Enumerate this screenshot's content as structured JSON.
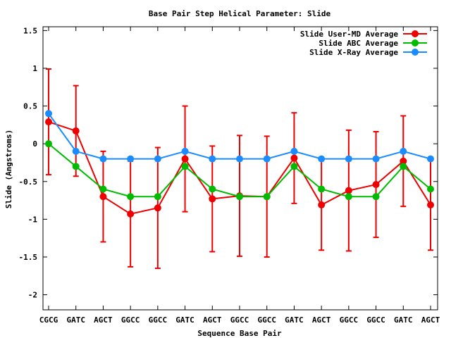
{
  "chart_data": {
    "type": "line",
    "title": "Base Pair Step Helical Parameter: Slide",
    "xlabel": "Sequence Base Pair",
    "ylabel": "Slide (Angstroms)",
    "ylim": [
      -2.2,
      1.55
    ],
    "yticks": [
      1.5,
      1,
      0.5,
      0,
      -0.5,
      -1,
      -1.5,
      -2
    ],
    "ytick_labels": [
      "1.5",
      "1",
      "0.5",
      "0",
      "-0.5",
      "-1",
      "-1.5",
      "-2"
    ],
    "categories": [
      "CGCG",
      "GATC",
      "AGCT",
      "GGCC",
      "GGCC",
      "GATC",
      "AGCT",
      "GGCC",
      "GGCC",
      "GATC",
      "AGCT",
      "GGCC",
      "GGCC",
      "GATC",
      "AGCT"
    ],
    "legend_position": "top-right",
    "series": [
      {
        "name": "Slide User-MD Average",
        "color": "#ee0000",
        "values": [
          0.29,
          0.17,
          -0.7,
          -0.93,
          -0.85,
          -0.2,
          -0.73,
          -0.69,
          -0.7,
          -0.19,
          -0.81,
          -0.62,
          -0.54,
          -0.23,
          -0.81
        ],
        "errors": [
          0.7,
          0.6,
          0.6,
          0.7,
          0.8,
          0.7,
          0.7,
          0.8,
          0.8,
          0.6,
          0.6,
          0.8,
          0.7,
          0.6,
          0.6
        ]
      },
      {
        "name": "Slide ABC Average",
        "color": "#00bb00",
        "values": [
          0.0,
          -0.3,
          -0.6,
          -0.7,
          -0.7,
          -0.3,
          -0.6,
          -0.7,
          -0.7,
          -0.3,
          -0.6,
          -0.7,
          -0.7,
          -0.3,
          -0.6
        ]
      },
      {
        "name": "Slide X-Ray Average",
        "color": "#1a8cff",
        "values": [
          0.4,
          -0.1,
          -0.2,
          -0.2,
          -0.2,
          -0.1,
          -0.2,
          -0.2,
          -0.2,
          -0.1,
          -0.2,
          -0.2,
          -0.2,
          -0.1,
          -0.2
        ]
      }
    ]
  }
}
